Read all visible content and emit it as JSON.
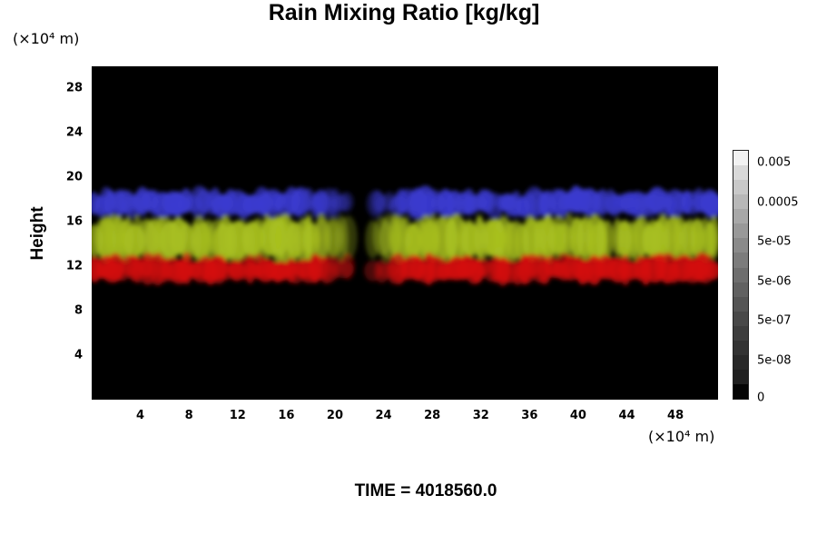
{
  "chart_data": {
    "type": "heatmap",
    "title": "Rain Mixing Ratio [kg/kg]",
    "xlabel": "",
    "ylabel": "Height",
    "x_unit": "(×10⁴ m)",
    "y_unit": "(×10⁴ m)",
    "xlim": [
      0,
      51.5
    ],
    "ylim": [
      0,
      30
    ],
    "x_ticks": [
      4,
      8,
      12,
      16,
      20,
      24,
      28,
      32,
      36,
      40,
      44,
      48
    ],
    "y_ticks": [
      4,
      8,
      12,
      16,
      20,
      24,
      28
    ],
    "colorbar": {
      "labels": [
        "0.005",
        "0.0005",
        "5e-05",
        "5e-06",
        "5e-07",
        "5e-08",
        "0"
      ],
      "colors": [
        "#f2f2f2",
        "#d9d9d9",
        "#c8c8c8",
        "#b8b8b8",
        "#a8a8a8",
        "#999999",
        "#8a8a8a",
        "#7c7c7c",
        "#6e6e6e",
        "#616161",
        "#555555",
        "#494949",
        "#3e3e3e",
        "#333333",
        "#292929",
        "#202020",
        "#050505"
      ]
    },
    "bands": [
      {
        "layer": "upper",
        "color": "#3b3bd0",
        "y_range": [
          16.5,
          19
        ]
      },
      {
        "layer": "middle",
        "color": "#a8c020",
        "y_range": [
          12.5,
          16.5
        ]
      },
      {
        "layer": "lower",
        "color": "#d41010",
        "y_range": [
          10.5,
          13
        ]
      }
    ],
    "gap_x_range": [
      21,
      23
    ]
  },
  "footer": {
    "time": "TIME = 4018560.0"
  }
}
